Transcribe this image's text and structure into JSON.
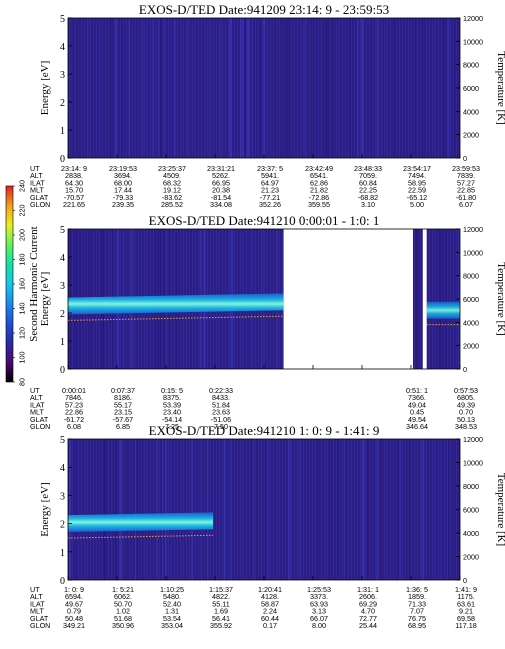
{
  "colors": {
    "background": "#ffffff",
    "field_dark": "#2a1a7a",
    "field_mid": "#2c3fb0",
    "band_blue": "#1c6bd8",
    "band_cyan": "#1bd0e6",
    "band_core": "#7fffd4",
    "gap": "#ffffff",
    "trace_orange": "#e0a040"
  },
  "colorbar": {
    "label": "Second Harmonic Current",
    "ticks": [
      "80",
      "100",
      "120",
      "140",
      "160",
      "180",
      "200",
      "220",
      "240"
    ],
    "stops": [
      "#000000",
      "#4b0a6e",
      "#2a2aa0",
      "#1f4fd6",
      "#1c8ae8",
      "#18c8e8",
      "#12e2a8",
      "#60f060",
      "#e8f020",
      "#f0a020",
      "#e02020"
    ]
  },
  "chart_data": [
    {
      "type": "heatmap",
      "title": "EXOS-D/TED",
      "date_label": "Date:941209",
      "time_range": "23:14: 9 - 23:59:53",
      "ylabel_left": "Energy [eV]",
      "ylabel_right": "Temperature [K]",
      "ylim_left": [
        0,
        5
      ],
      "yticks_left": [
        "0",
        "1",
        "2",
        "3",
        "4",
        "5"
      ],
      "ylim_right": [
        0,
        12000
      ],
      "yticks_right": [
        "0",
        "2000",
        "4000",
        "6000",
        "8000",
        "10000",
        "12000"
      ],
      "row_labels": [
        "UT",
        "ALT",
        "ILAT",
        "MLT",
        "GLAT",
        "GLON"
      ],
      "columns": [
        [
          "23:14: 9",
          "2838.",
          "64.30",
          "15.70",
          "-70.57",
          "221.65"
        ],
        [
          "23:19:53",
          "3694.",
          "68.00",
          "17.44",
          "-79.33",
          "239.35"
        ],
        [
          "23:25:37",
          "4509.",
          "68.32",
          "19.12",
          "-83.62",
          "285.52"
        ],
        [
          "23:31:21",
          "5262.",
          "66.95",
          "20.38",
          "-81.54",
          "334.08"
        ],
        [
          "23:37: 5",
          "5941.",
          "64.97",
          "21.23",
          "-77.21",
          "352.26"
        ],
        [
          "23:42:49",
          "6541.",
          "62.86",
          "21.82",
          "-72.86",
          "359.55"
        ],
        [
          "23:48:33",
          "7059.",
          "60.84",
          "22.25",
          "-68.82",
          "3.10"
        ],
        [
          "23:54:17",
          "7494.",
          "58.95",
          "22.59",
          "-65.12",
          "5.00"
        ],
        [
          "23:59:53",
          "7839.",
          "57.27",
          "22.85",
          "-61.80",
          "6.07"
        ]
      ],
      "band": null,
      "gaps": []
    },
    {
      "type": "heatmap",
      "title": "EXOS-D/TED",
      "date_label": "Date:941210",
      "time_range": "0:00:01 - 1:0: 1",
      "ylabel_left": "Energy [eV]",
      "ylabel_right": "Temperature [K]",
      "ylim_left": [
        0,
        5
      ],
      "yticks_left": [
        "0",
        "1",
        "2",
        "3",
        "4",
        "5"
      ],
      "ylim_right": [
        0,
        12000
      ],
      "yticks_right": [
        "0",
        "2000",
        "4000",
        "6000",
        "8000",
        "10000",
        "12000"
      ],
      "row_labels": [
        "UT",
        "ALT",
        "ILAT",
        "MLT",
        "GLAT",
        "GLON"
      ],
      "columns": [
        [
          "0:00:01",
          "7846.",
          "57.23",
          "22.86",
          "-61.72",
          "6.08"
        ],
        [
          "0:07:37",
          "8186.",
          "55.17",
          "23.15",
          "-57.67",
          "6.85"
        ],
        [
          "0:15: 5",
          "8375.",
          "53.39",
          "23.40",
          "-54.14",
          "7.25"
        ],
        [
          "0:22:33",
          "8433.",
          "51.84",
          "23.63",
          "-51.06",
          "7.50"
        ],
        [
          "",
          "",
          "",
          "",
          "",
          ""
        ],
        [
          "",
          "",
          "",
          "",
          "",
          ""
        ],
        [
          "",
          "",
          "",
          "",
          "",
          ""
        ],
        [
          "0:51: 1",
          "7366.",
          "49.04",
          "0.45",
          "49.54",
          "346.64"
        ],
        [
          "0:57:53",
          "6805.",
          "49.39",
          "0.70",
          "50.13",
          "348.53"
        ]
      ],
      "band": {
        "energy_center_ev": [
          2.25,
          2.3,
          2.35,
          2.4
        ],
        "energy_width_ev": 0.6
      },
      "gaps": [
        [
          0.55,
          0.88
        ],
        [
          0.905,
          0.915
        ]
      ]
    },
    {
      "type": "heatmap",
      "title": "EXOS-D/TED",
      "date_label": "Date:941210",
      "time_range": "1: 0: 9 - 1:41: 9",
      "ylabel_left": "Energy [eV]",
      "ylabel_right": "Temperature [K]",
      "ylim_left": [
        0,
        5
      ],
      "yticks_left": [
        "0",
        "1",
        "2",
        "3",
        "4",
        "5"
      ],
      "ylim_right": [
        0,
        12000
      ],
      "yticks_right": [
        "0",
        "2000",
        "4000",
        "6000",
        "8000",
        "10000",
        "12000"
      ],
      "row_labels": [
        "UT",
        "ALT",
        "ILAT",
        "MLT",
        "GLAT",
        "GLON"
      ],
      "columns": [
        [
          "1: 0: 9",
          "6594.",
          "49.67",
          "0.79",
          "50.48",
          "349.21"
        ],
        [
          "1: 5:21",
          "6062.",
          "50.70",
          "1.02",
          "51.68",
          "350.96"
        ],
        [
          "1:10:25",
          "5480.",
          "52.40",
          "1.31",
          "53.54",
          "353.04"
        ],
        [
          "1:15:37",
          "4822.",
          "55.11",
          "1.69",
          "56.41",
          "355.92"
        ],
        [
          "1:20:41",
          "4128.",
          "58.87",
          "2.24",
          "60.44",
          "0.17"
        ],
        [
          "1:25:53",
          "3373.",
          "63.93",
          "3.13",
          "66.07",
          "8.00"
        ],
        [
          "1:31: 1",
          "2606.",
          "69.29",
          "4.70",
          "72.77",
          "25.44"
        ],
        [
          "1:36: 5",
          "1859.",
          "71.33",
          "7.07",
          "76.75",
          "68.95"
        ],
        [
          "1:41: 9",
          "1175.",
          "63.61",
          "9.21",
          "69.58",
          "117.18"
        ]
      ],
      "band": {
        "energy_center_ev": [
          2.0,
          2.05,
          2.1
        ],
        "energy_width_ev": 0.6
      },
      "gaps": []
    }
  ]
}
